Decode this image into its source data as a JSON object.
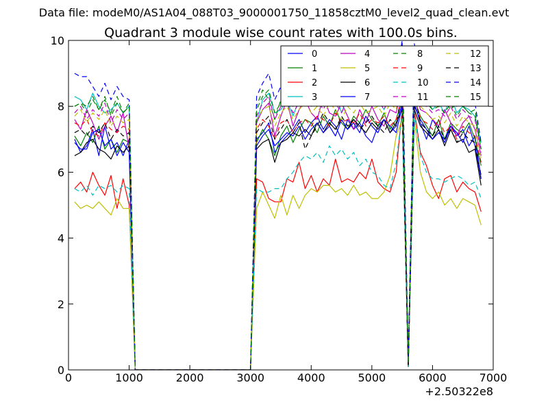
{
  "chart_data": {
    "type": "line",
    "suptitle": "Data file: modeM0/AS1A04_088T03_9000001750_11858cztM0_level2_quad_clean.evt",
    "title": "Quadrant 3 module wise count rates with 100.0s bins.",
    "xlabel": "",
    "ylabel": "",
    "xlim": [
      0,
      7000
    ],
    "ylim": [
      0,
      10
    ],
    "x_ticks": [
      0,
      1000,
      2000,
      3000,
      4000,
      5000,
      6000,
      7000
    ],
    "y_ticks": [
      0,
      2,
      4,
      6,
      8,
      10
    ],
    "x_tick_labels": [
      "0",
      "1000",
      "2000",
      "3000",
      "4000",
      "5000",
      "6000",
      "7000"
    ],
    "y_tick_labels": [
      "0",
      "2",
      "4",
      "6",
      "8",
      "10"
    ],
    "x_offset_label": "+2.50322e8",
    "legend_position": "top-right",
    "legend_columns": 4,
    "x": [
      100,
      200,
      300,
      400,
      500,
      600,
      700,
      800,
      900,
      1000,
      1100,
      1200,
      1300,
      1400,
      1500,
      1600,
      1700,
      1800,
      1900,
      2000,
      2100,
      2200,
      2300,
      2400,
      2500,
      2600,
      2700,
      2800,
      2900,
      3000,
      3100,
      3200,
      3300,
      3400,
      3500,
      3600,
      3700,
      3800,
      3900,
      4000,
      4100,
      4200,
      4300,
      4400,
      4500,
      4600,
      4700,
      4800,
      4900,
      5000,
      5100,
      5200,
      5300,
      5400,
      5500,
      5600,
      5700,
      5800,
      5900,
      6000,
      6100,
      6200,
      6300,
      6400,
      6500,
      6600,
      6700,
      6800
    ],
    "series": [
      {
        "name": "0",
        "color": "#0000ff",
        "dash": "solid",
        "values": [
          7.0,
          6.6,
          6.8,
          7.3,
          6.5,
          7.4,
          6.7,
          6.9,
          6.5,
          7.0,
          0,
          0,
          0,
          0,
          0,
          0,
          0,
          0,
          0,
          0,
          0,
          0,
          0,
          0,
          0,
          0,
          0,
          0,
          0,
          0,
          7.0,
          7.2,
          7.5,
          6.6,
          6.9,
          7.1,
          7.3,
          7.6,
          7.2,
          7.5,
          7.7,
          7.3,
          7.6,
          7.4,
          7.0,
          7.6,
          7.3,
          7.5,
          7.1,
          6.9,
          7.4,
          7.6,
          7.2,
          7.4,
          8.1,
          0.1,
          8.1,
          7.5,
          7.0,
          7.6,
          7.3,
          6.9,
          7.4,
          7.1,
          7.3,
          6.8,
          7.1,
          5.8
        ]
      },
      {
        "name": "1",
        "color": "#008000",
        "dash": "solid",
        "values": [
          7.1,
          6.8,
          7.2,
          6.9,
          7.4,
          6.7,
          7.0,
          6.6,
          7.0,
          6.9,
          0,
          0,
          0,
          0,
          0,
          0,
          0,
          0,
          0,
          0,
          0,
          0,
          0,
          0,
          0,
          0,
          0,
          0,
          0,
          0,
          6.9,
          7.3,
          7.0,
          6.5,
          7.1,
          7.4,
          6.9,
          7.3,
          7.6,
          7.5,
          7.2,
          7.7,
          7.4,
          7.9,
          7.5,
          7.3,
          7.7,
          7.5,
          7.9,
          7.6,
          7.4,
          7.8,
          7.3,
          7.6,
          8.2,
          0.1,
          8.2,
          7.7,
          7.4,
          7.1,
          7.6,
          7.0,
          7.5,
          7.3,
          7.2,
          7.5,
          7.0,
          6.2
        ]
      },
      {
        "name": "2",
        "color": "#ff0000",
        "dash": "solid",
        "values": [
          5.5,
          5.7,
          5.4,
          6.0,
          5.6,
          5.3,
          5.9,
          4.9,
          5.8,
          5.0,
          0,
          0,
          0,
          0,
          0,
          0,
          0,
          0,
          0,
          0,
          0,
          0,
          0,
          0,
          0,
          0,
          0,
          0,
          0,
          0,
          5.8,
          5.7,
          5.2,
          5.1,
          5.1,
          5.8,
          5.7,
          6.3,
          5.5,
          5.9,
          5.4,
          5.8,
          5.6,
          6.4,
          5.7,
          5.8,
          5.7,
          6.0,
          5.8,
          6.4,
          5.7,
          5.5,
          5.4,
          6.0,
          7.9,
          0.1,
          7.9,
          6.6,
          6.2,
          5.6,
          5.2,
          5.8,
          5.9,
          5.4,
          5.7,
          5.5,
          5.4,
          4.8
        ]
      },
      {
        "name": "3",
        "color": "#00bfbf",
        "dash": "solid",
        "values": [
          8.3,
          8.2,
          7.9,
          8.4,
          8.0,
          7.8,
          7.9,
          8.1,
          7.8,
          8.0,
          0,
          0,
          0,
          0,
          0,
          0,
          0,
          0,
          0,
          0,
          0,
          0,
          0,
          0,
          0,
          0,
          0,
          0,
          0,
          0,
          7.5,
          8.2,
          8.4,
          7.8,
          7.9,
          8.2,
          7.7,
          8.2,
          8.3,
          8.2,
          8.0,
          8.3,
          8.2,
          8.4,
          7.8,
          8.3,
          8.0,
          8.3,
          8.2,
          8.0,
          8.2,
          7.9,
          8.3,
          8.2,
          9.4,
          0.2,
          9.3,
          8.4,
          8.2,
          7.9,
          8.1,
          7.8,
          8.3,
          7.8,
          8.0,
          7.9,
          7.7,
          6.9
        ]
      },
      {
        "name": "4",
        "color": "#bf00bf",
        "dash": "solid",
        "values": [
          7.6,
          7.3,
          7.9,
          7.5,
          7.0,
          7.4,
          7.7,
          7.2,
          7.8,
          6.7,
          0,
          0,
          0,
          0,
          0,
          0,
          0,
          0,
          0,
          0,
          0,
          0,
          0,
          0,
          0,
          0,
          0,
          0,
          0,
          0,
          7.5,
          7.9,
          8.1,
          7.1,
          7.7,
          8.2,
          7.4,
          7.9,
          8.2,
          7.8,
          7.6,
          8.3,
          7.8,
          7.7,
          8.1,
          7.7,
          7.3,
          7.9,
          7.5,
          8.0,
          7.6,
          7.4,
          7.9,
          7.8,
          8.6,
          0.2,
          8.6,
          7.9,
          7.8,
          7.6,
          7.4,
          7.9,
          7.5,
          7.1,
          7.5,
          7.7,
          7.3,
          6.5
        ]
      },
      {
        "name": "5",
        "color": "#bfbf00",
        "dash": "solid",
        "values": [
          5.1,
          4.9,
          5.0,
          4.9,
          5.1,
          4.9,
          4.7,
          5.2,
          4.9,
          4.9,
          0,
          0,
          0,
          0,
          0,
          0,
          0,
          0,
          0,
          0,
          0,
          0,
          0,
          0,
          0,
          0,
          0,
          0,
          0,
          0,
          4.9,
          5.4,
          5.0,
          4.6,
          5.3,
          4.7,
          5.3,
          4.9,
          5.3,
          5.5,
          5.4,
          5.6,
          5.6,
          5.4,
          5.5,
          5.3,
          5.6,
          5.3,
          5.4,
          5.2,
          5.2,
          5.4,
          5.9,
          7.1,
          7.6,
          0.1,
          7.6,
          6.0,
          5.4,
          5.2,
          5.4,
          5.0,
          5.2,
          4.9,
          5.2,
          5.1,
          5.0,
          4.4
        ]
      },
      {
        "name": "6",
        "color": "#000000",
        "dash": "solid",
        "values": [
          6.5,
          6.6,
          6.9,
          7.0,
          6.7,
          6.6,
          6.4,
          6.8,
          6.6,
          6.8,
          0,
          0,
          0,
          0,
          0,
          0,
          0,
          0,
          0,
          0,
          0,
          0,
          0,
          0,
          0,
          0,
          0,
          0,
          0,
          0,
          6.7,
          6.9,
          7.0,
          6.3,
          6.9,
          7.0,
          7.2,
          7.1,
          7.3,
          7.1,
          7.5,
          7.2,
          7.5,
          7.3,
          7.6,
          7.3,
          7.6,
          7.4,
          7.2,
          7.5,
          7.3,
          7.6,
          7.2,
          7.5,
          7.9,
          0.1,
          7.9,
          7.4,
          7.2,
          7.0,
          7.3,
          6.8,
          7.3,
          6.9,
          7.0,
          6.6,
          6.7,
          5.6
        ]
      },
      {
        "name": "7",
        "color": "#0000ff",
        "dash": "solid",
        "values": [
          6.9,
          6.7,
          6.7,
          7.2,
          7.3,
          6.8,
          7.0,
          6.5,
          6.9,
          6.6,
          0,
          0,
          0,
          0,
          0,
          0,
          0,
          0,
          0,
          0,
          0,
          0,
          0,
          0,
          0,
          0,
          0,
          0,
          0,
          0,
          6.8,
          7.1,
          7.3,
          6.8,
          7.0,
          7.2,
          7.1,
          7.4,
          7.0,
          7.3,
          7.5,
          7.2,
          7.4,
          7.1,
          7.6,
          7.3,
          7.5,
          7.2,
          7.7,
          7.4,
          7.2,
          7.6,
          7.4,
          7.2,
          8.0,
          0.2,
          8.0,
          7.6,
          7.3,
          7.0,
          7.2,
          7.0,
          7.4,
          7.2,
          6.9,
          7.4,
          6.8,
          5.8
        ]
      },
      {
        "name": "8",
        "color": "#008000",
        "dash": "dashed",
        "values": [
          8.0,
          8.1,
          8.0,
          8.3,
          7.9,
          8.2,
          7.8,
          8.3,
          7.8,
          8.1,
          0,
          0,
          0,
          0,
          0,
          0,
          0,
          0,
          0,
          0,
          0,
          0,
          0,
          0,
          0,
          0,
          0,
          0,
          0,
          0,
          8.0,
          8.5,
          8.2,
          7.6,
          8.2,
          8.3,
          8.0,
          8.3,
          8.4,
          8.5,
          8.2,
          8.4,
          8.5,
          8.3,
          8.6,
          8.3,
          8.4,
          8.5,
          8.3,
          8.4,
          8.6,
          8.2,
          8.3,
          8.5,
          9.5,
          0.3,
          9.4,
          8.4,
          8.1,
          8.3,
          8.0,
          8.2,
          7.9,
          8.1,
          8.0,
          7.8,
          7.9,
          6.7
        ]
      },
      {
        "name": "9",
        "color": "#ff0000",
        "dash": "dashed",
        "values": [
          7.5,
          7.4,
          7.6,
          7.2,
          7.1,
          7.5,
          7.3,
          7.2,
          7.4,
          7.3,
          0,
          0,
          0,
          0,
          0,
          0,
          0,
          0,
          0,
          0,
          0,
          0,
          0,
          0,
          0,
          0,
          0,
          0,
          0,
          0,
          7.3,
          7.6,
          7.4,
          7.0,
          7.5,
          7.6,
          7.2,
          7.5,
          7.6,
          7.4,
          7.7,
          7.6,
          7.4,
          7.8,
          7.5,
          7.6,
          7.5,
          7.8,
          7.4,
          7.6,
          7.5,
          7.7,
          7.4,
          7.6,
          8.3,
          0.1,
          8.3,
          7.6,
          7.5,
          7.3,
          7.6,
          7.2,
          7.4,
          7.0,
          7.4,
          7.2,
          7.1,
          6.3
        ]
      },
      {
        "name": "10",
        "color": "#00bfbf",
        "dash": "dashed",
        "values": [
          5.5,
          5.4,
          5.6,
          5.3,
          5.6,
          5.5,
          5.6,
          5.4,
          5.6,
          5.5,
          0,
          0,
          0,
          0,
          0,
          0,
          0,
          0,
          0,
          0,
          0,
          0,
          0,
          0,
          0,
          0,
          0,
          0,
          0,
          0,
          5.5,
          5.4,
          5.4,
          5.5,
          5.5,
          5.8,
          6.0,
          6.3,
          6.5,
          6.4,
          6.6,
          6.3,
          6.8,
          6.5,
          6.7,
          6.4,
          6.6,
          6.2,
          6.4,
          6.0,
          5.9,
          5.6,
          5.5,
          6.3,
          7.8,
          0.1,
          7.8,
          6.5,
          6.0,
          5.8,
          5.8,
          5.7,
          5.8,
          5.9,
          5.8,
          5.6,
          5.7,
          5.2
        ]
      },
      {
        "name": "11",
        "color": "#bf00bf",
        "dash": "dashed",
        "values": [
          7.8,
          8.0,
          7.6,
          7.9,
          7.7,
          8.1,
          7.5,
          7.9,
          7.6,
          7.8,
          0,
          0,
          0,
          0,
          0,
          0,
          0,
          0,
          0,
          0,
          0,
          0,
          0,
          0,
          0,
          0,
          0,
          0,
          0,
          0,
          7.7,
          8.1,
          8.3,
          7.6,
          8.0,
          8.2,
          7.8,
          8.1,
          8.3,
          8.0,
          8.2,
          7.9,
          8.3,
          8.1,
          7.8,
          8.2,
          8.0,
          8.3,
          8.0,
          8.1,
          8.2,
          7.9,
          8.3,
          8.1,
          9.2,
          0.2,
          9.2,
          8.2,
          8.0,
          7.8,
          7.9,
          7.7,
          8.0,
          7.6,
          7.9,
          7.7,
          7.6,
          6.6
        ]
      },
      {
        "name": "12",
        "color": "#bfbf00",
        "dash": "dashed",
        "values": [
          7.7,
          7.9,
          7.5,
          7.8,
          7.6,
          7.9,
          7.4,
          7.7,
          7.5,
          7.6,
          0,
          0,
          0,
          0,
          0,
          0,
          0,
          0,
          0,
          0,
          0,
          0,
          0,
          0,
          0,
          0,
          0,
          0,
          0,
          0,
          7.6,
          7.9,
          8.0,
          7.4,
          7.8,
          8.0,
          7.6,
          7.9,
          8.1,
          7.8,
          8.0,
          7.7,
          8.1,
          7.9,
          7.6,
          8.0,
          7.8,
          8.1,
          7.8,
          7.9,
          8.0,
          7.7,
          8.1,
          7.9,
          9.0,
          0.2,
          9.0,
          8.0,
          7.8,
          7.6,
          7.7,
          7.5,
          7.8,
          7.4,
          7.7,
          7.5,
          7.4,
          6.4
        ]
      },
      {
        "name": "13",
        "color": "#000000",
        "dash": "dashed",
        "values": [
          7.2,
          7.3,
          7.1,
          7.4,
          7.2,
          7.5,
          7.0,
          7.3,
          7.1,
          7.2,
          0,
          0,
          0,
          0,
          0,
          0,
          0,
          0,
          0,
          0,
          0,
          0,
          0,
          0,
          0,
          0,
          0,
          0,
          0,
          0,
          7.2,
          7.5,
          7.7,
          7.0,
          7.3,
          7.6,
          7.2,
          7.5,
          6.7,
          7.1,
          7.4,
          7.8,
          7.5,
          7.3,
          7.7,
          7.4,
          7.6,
          7.3,
          7.5,
          7.7,
          7.4,
          7.2,
          7.6,
          7.4,
          8.4,
          0.1,
          8.4,
          7.5,
          7.3,
          7.1,
          7.4,
          7.0,
          7.3,
          6.9,
          7.2,
          7.0,
          6.9,
          5.9
        ]
      },
      {
        "name": "14",
        "color": "#0000ff",
        "dash": "dashed",
        "values": [
          9.0,
          8.9,
          8.9,
          8.6,
          8.3,
          8.7,
          8.2,
          8.6,
          8.3,
          8.2,
          0,
          0,
          0,
          0,
          0,
          0,
          0,
          0,
          0,
          0,
          0,
          0,
          0,
          0,
          0,
          0,
          0,
          0,
          0,
          0,
          8.3,
          8.7,
          9.0,
          8.2,
          8.6,
          8.9,
          8.4,
          8.8,
          9.1,
          8.5,
          8.9,
          9.2,
          8.7,
          8.3,
          8.9,
          8.5,
          9.0,
          8.6,
          8.8,
          8.4,
          8.7,
          8.9,
          8.5,
          8.8,
          10.0,
          0.3,
          9.9,
          8.8,
          8.6,
          8.3,
          8.7,
          8.2,
          8.6,
          8.0,
          8.4,
          8.2,
          8.1,
          6.9
        ]
      },
      {
        "name": "15",
        "color": "#008000",
        "dash": "dashed",
        "values": [
          8.0,
          8.1,
          7.8,
          8.2,
          7.9,
          8.3,
          7.7,
          8.1,
          7.8,
          8.0,
          0,
          0,
          0,
          0,
          0,
          0,
          0,
          0,
          0,
          0,
          0,
          0,
          0,
          0,
          0,
          0,
          0,
          0,
          0,
          0,
          7.9,
          8.3,
          8.5,
          7.8,
          8.1,
          8.4,
          8.0,
          8.3,
          8.5,
          8.2,
          8.4,
          8.1,
          8.5,
          8.3,
          8.0,
          8.4,
          8.2,
          8.5,
          8.2,
          8.3,
          8.4,
          8.1,
          8.5,
          8.3,
          9.3,
          0.2,
          9.3,
          8.3,
          8.1,
          7.9,
          8.0,
          7.8,
          8.1,
          7.7,
          8.0,
          7.8,
          7.7,
          6.7
        ]
      }
    ]
  }
}
